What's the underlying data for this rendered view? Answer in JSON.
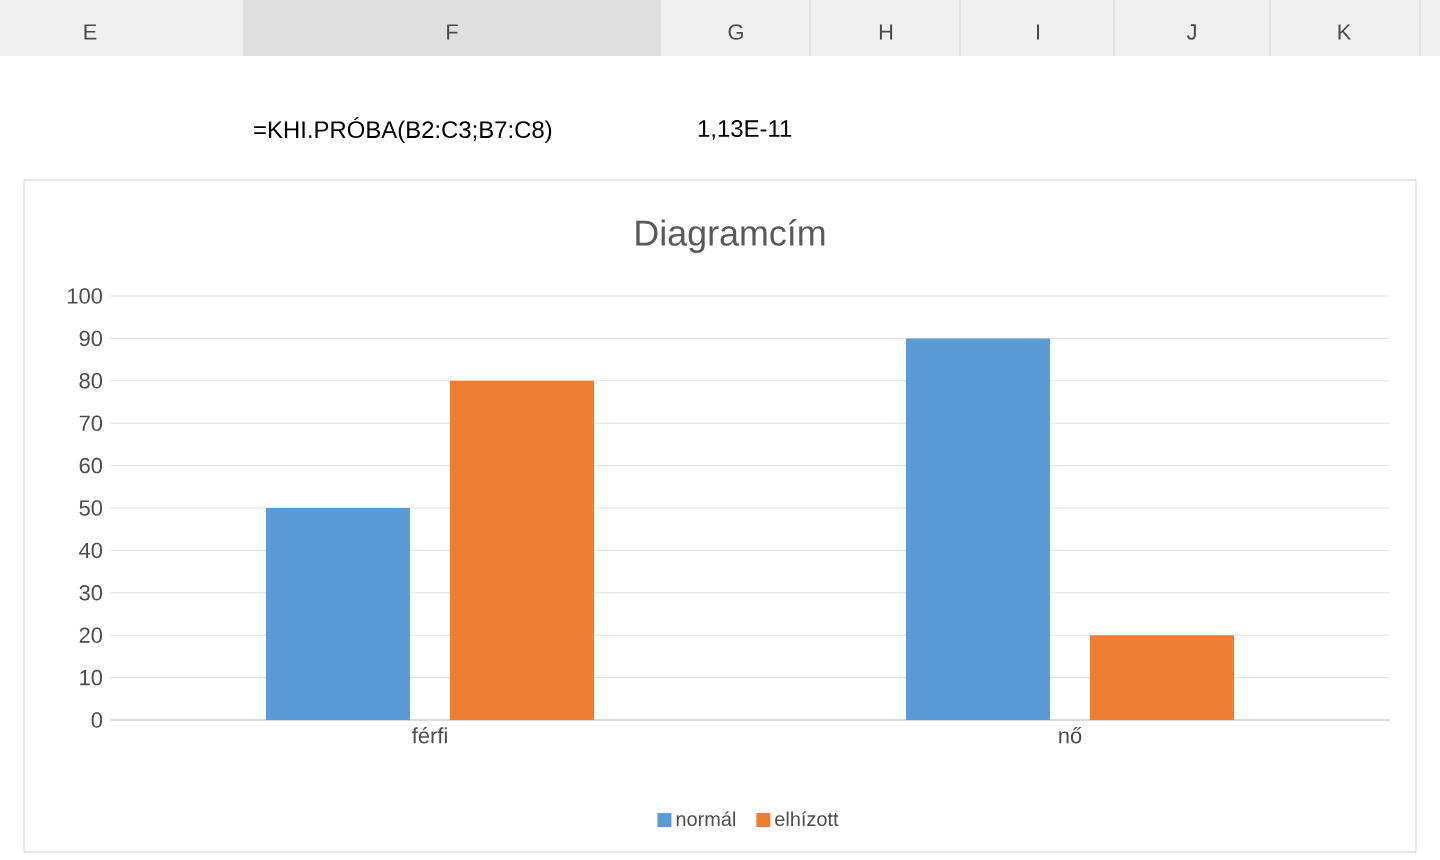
{
  "chart_data": {
    "type": "bar",
    "title": "Diagramcím",
    "categories": [
      "férfi",
      "nő"
    ],
    "series": [
      {
        "name": "normál",
        "color": "#5b9bd5",
        "values": [
          50,
          90
        ]
      },
      {
        "name": "elhízott",
        "color": "#ed7d31",
        "values": [
          80,
          20
        ]
      }
    ],
    "ylim": [
      0,
      100
    ],
    "yticks": [
      0,
      10,
      20,
      30,
      40,
      50,
      60,
      70,
      80,
      90,
      100
    ],
    "grid": "y",
    "legend": "bottom",
    "annotations": [
      "E",
      "F",
      "G",
      "H",
      "I",
      "J",
      "K",
      "=KHI.PRÓBA(B2:C3;B7:C8)",
      "1,13E-11"
    ]
  }
}
